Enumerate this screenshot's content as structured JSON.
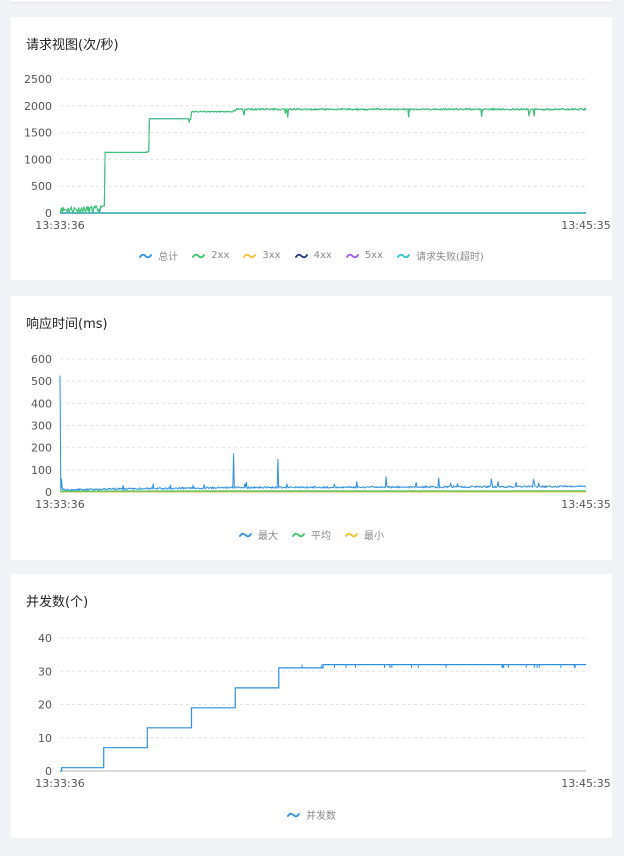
{
  "chart_data": [
    {
      "type": "line",
      "title": "请求视图(次/秒)",
      "x_start": "13:33:36",
      "x_end": "13:45:35",
      "ylim": [
        0,
        2500
      ],
      "y_ticks": [
        0,
        500,
        1000,
        1500,
        2000,
        2500
      ],
      "grid": true,
      "legend_position": "bottom",
      "legend": [
        "总计",
        "2xx",
        "3xx",
        "4xx",
        "5xx",
        "请求失败(超时)"
      ],
      "colors": {
        "总计": "#2f8fe0",
        "2xx": "#3cc26a",
        "3xx": "#f2c12e",
        "4xx": "#1f3a78",
        "5xx": "#9a5de0",
        "请求失败(超时)": "#2ec4c4"
      },
      "series": [
        {
          "name": "总计",
          "segments": [
            [
              0,
              0,
              130
            ],
            [
              0.08,
              130,
              130
            ],
            [
              0.085,
              1130,
              1130
            ],
            [
              0.165,
              1130,
              1150
            ],
            [
              0.17,
              1760,
              1760
            ],
            [
              0.245,
              1700,
              1760
            ],
            [
              0.25,
              1880,
              1900
            ],
            [
              0.33,
              1880,
              1920
            ],
            [
              0.335,
              1920,
              1950
            ],
            [
              1.0,
              1920,
              1960
            ]
          ]
        },
        {
          "name": "2xx",
          "segments": [
            [
              0,
              0,
              130
            ],
            [
              0.08,
              130,
              130
            ],
            [
              0.085,
              1130,
              1130
            ],
            [
              0.165,
              1130,
              1150
            ],
            [
              0.17,
              1760,
              1760
            ],
            [
              0.245,
              1700,
              1760
            ],
            [
              0.25,
              1880,
              1900
            ],
            [
              0.33,
              1880,
              1920
            ],
            [
              0.335,
              1920,
              1950
            ],
            [
              1.0,
              1920,
              1960
            ]
          ]
        },
        {
          "name": "3xx",
          "segments": [
            [
              0,
              0,
              0
            ],
            [
              1,
              0,
              0
            ]
          ]
        },
        {
          "name": "4xx",
          "segments": [
            [
              0,
              0,
              0
            ],
            [
              1,
              0,
              0
            ]
          ]
        },
        {
          "name": "5xx",
          "segments": [
            [
              0,
              0,
              0
            ],
            [
              1,
              0,
              0
            ]
          ]
        },
        {
          "name": "请求失败(超时)",
          "segments": [
            [
              0,
              0,
              0
            ],
            [
              1,
              0,
              0
            ]
          ]
        }
      ]
    },
    {
      "type": "line",
      "title": "响应时间(ms)",
      "x_start": "13:33:36",
      "x_end": "13:45:35",
      "ylim": [
        0,
        600
      ],
      "y_ticks": [
        0,
        100,
        200,
        300,
        400,
        500,
        600
      ],
      "grid": true,
      "legend_position": "bottom",
      "legend": [
        "最大",
        "平均",
        "最小"
      ],
      "colors": {
        "最大": "#2f8fe0",
        "平均": "#3cc26a",
        "最小": "#f2c12e"
      },
      "series": [
        {
          "name": "最大",
          "baseline": [
            [
              0,
              10
            ],
            [
              0.33,
              20
            ],
            [
              1.0,
              25
            ]
          ],
          "spikes": [
            [
              0.0,
              525
            ],
            [
              0.003,
              60
            ],
            [
              0.33,
              175
            ],
            [
              0.415,
              150
            ],
            [
              0.62,
              70
            ],
            [
              0.72,
              65
            ],
            [
              0.82,
              60
            ],
            [
              0.9,
              55
            ]
          ]
        },
        {
          "name": "平均",
          "baseline": [
            [
              0,
              4
            ],
            [
              1.0,
              5
            ]
          ]
        },
        {
          "name": "最小",
          "baseline": [
            [
              0,
              1
            ],
            [
              1.0,
              1
            ]
          ]
        }
      ]
    },
    {
      "type": "line",
      "title": "并发数(个)",
      "x_start": "13:33:36",
      "x_end": "13:45:35",
      "ylim": [
        0,
        40
      ],
      "y_ticks": [
        0,
        10,
        20,
        30,
        40
      ],
      "grid": true,
      "legend_position": "bottom",
      "legend": [
        "并发数"
      ],
      "colors": {
        "并发数": "#2f8fe0"
      },
      "series": [
        {
          "name": "并发数",
          "steps": [
            [
              0,
              0
            ],
            [
              0.003,
              1
            ],
            [
              0.083,
              7
            ],
            [
              0.166,
              13
            ],
            [
              0.25,
              19
            ],
            [
              0.333,
              25
            ],
            [
              0.416,
              31
            ],
            [
              0.5,
              32
            ],
            [
              1.0,
              32
            ]
          ]
        }
      ]
    }
  ]
}
